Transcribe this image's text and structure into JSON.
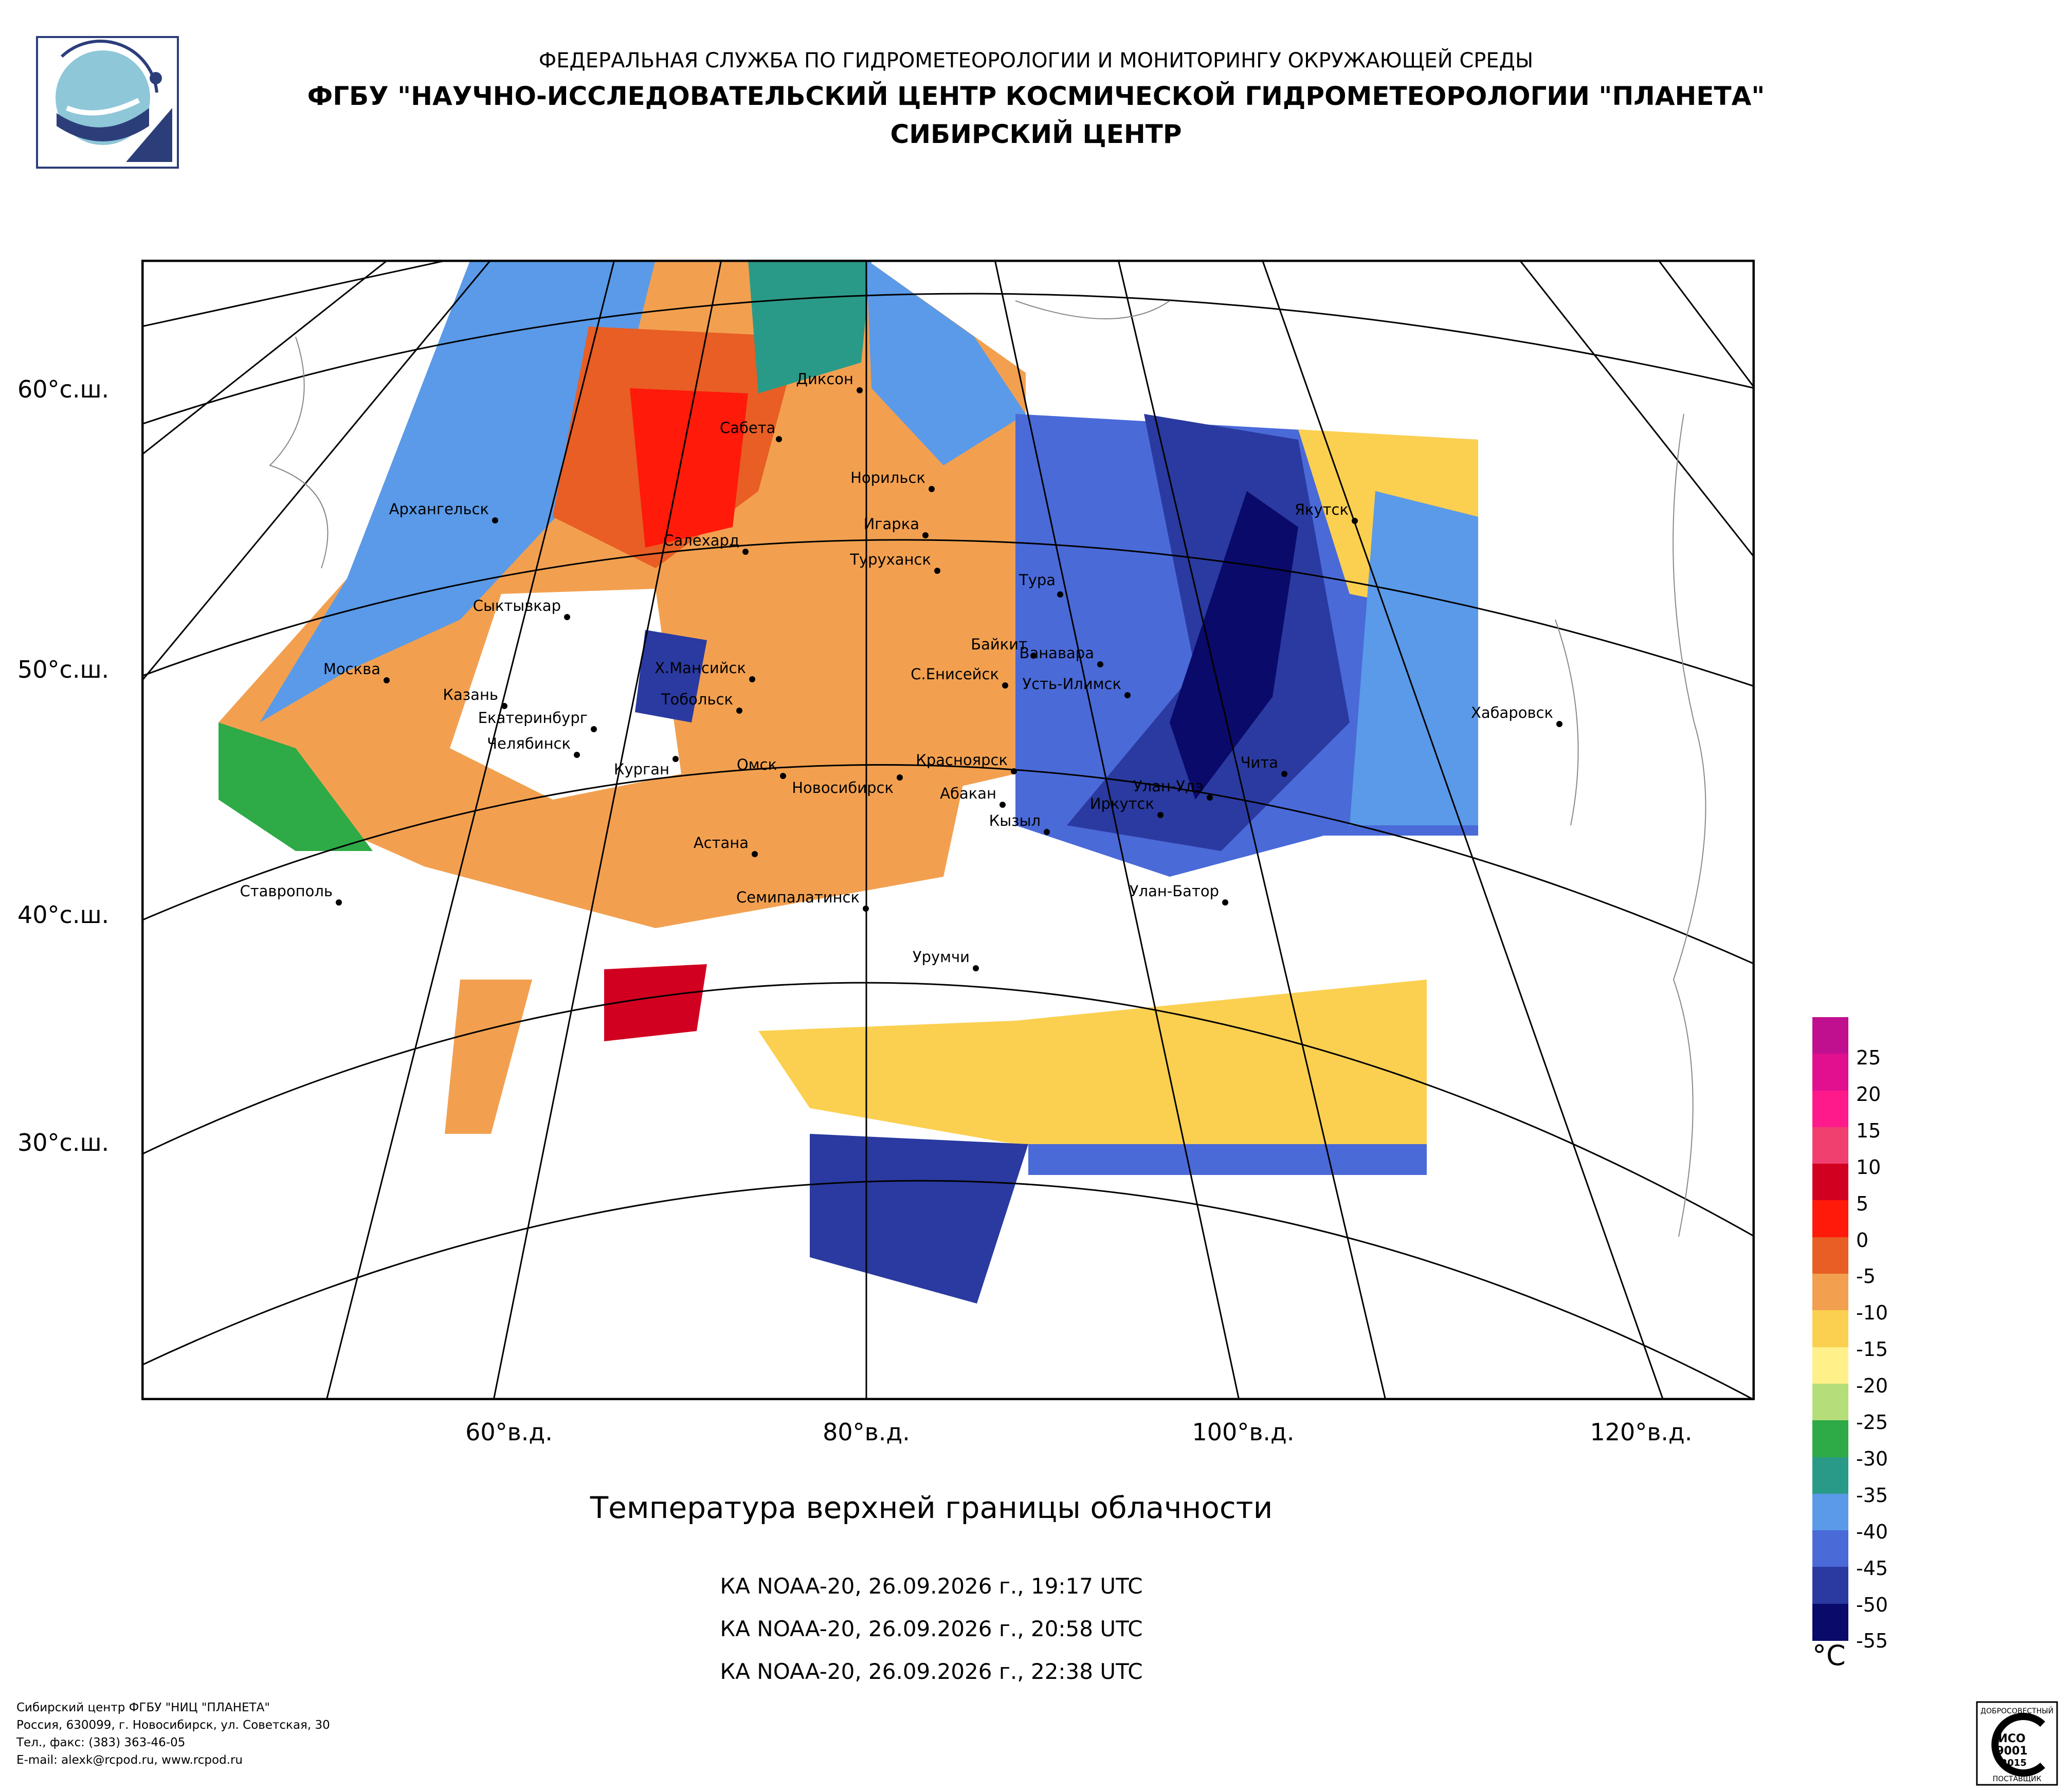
{
  "header": {
    "line1": "ФЕДЕРАЛЬНАЯ СЛУЖБА ПО ГИДРОМЕТЕОРОЛОГИИ И МОНИТОРИНГУ ОКРУЖАЮЩЕЙ СРЕДЫ",
    "line2": "ФГБУ \"НАУЧНО-ИССЛЕДОВАТЕЛЬСКИЙ ЦЕНТР КОСМИЧЕСКОЙ ГИДРОМЕТЕОРОЛОГИИ \"ПЛАНЕТА\"",
    "line3": "СИБИРСКИЙ ЦЕНТР"
  },
  "map": {
    "lat_labels": [
      "60°с.ш.",
      "50°с.ш.",
      "40°с.ш.",
      "30°с.ш."
    ],
    "lon_labels": [
      "60°в.д.",
      "80°в.д.",
      "100°в.д.",
      "120°в.д."
    ],
    "cities": [
      "Диксон",
      "Сабета",
      "Норильск",
      "Архангельск",
      "Игарка",
      "Салехард",
      "Туруханск",
      "Тура",
      "Якутск",
      "Сыктывкар",
      "Байкит",
      "Ванавара",
      "Москва",
      "Х.Мансийск",
      "С.Енисейск",
      "Усть-Илимск",
      "Казань",
      "Тобольск",
      "Хабаровск",
      "Екатеринбург",
      "Челябинск",
      "Курган",
      "Красноярск",
      "Чита",
      "Омск",
      "Новосибирск",
      "Улан-Удэ",
      "Абакан",
      "Иркутск",
      "Кызыл",
      "Астана",
      "Ставрополь",
      "Семипалатинск",
      "Улан-Батор",
      "Урумчи"
    ]
  },
  "title": {
    "subject": "Температура верхней границы облачности",
    "passes": [
      "КА NOAA-20, 26.09.2026 г., 19:17 UTC",
      "КА NOAA-20, 26.09.2026 г., 20:58 UTC",
      "КА NOAA-20, 26.09.2026 г., 22:38 UTC"
    ]
  },
  "legend": {
    "unit": "°C",
    "ticks": [
      "25",
      "20",
      "15",
      "10",
      "5",
      "0",
      "-5",
      "-10",
      "-15",
      "-20",
      "-25",
      "-30",
      "-35",
      "-40",
      "-45",
      "-50",
      "-55"
    ],
    "colors": [
      "#c0108f",
      "#e0108f",
      "#ff1a8c",
      "#f04070",
      "#d10020",
      "#ff1a0a",
      "#e85e25",
      "#f2a050",
      "#fbd050",
      "#fff08a",
      "#b5dd7a",
      "#2eaa46",
      "#2a9a88",
      "#5a9ae8",
      "#4a6ad8",
      "#2a3aa0",
      "#0a0a6a"
    ]
  },
  "footer": {
    "line1": "Сибирский центр ФГБУ \"НИЦ \"ПЛАНЕТА\"",
    "line2": "Россия, 630099, г. Новосибирск, ул. Советская, 30",
    "line3": "Тел., факс: (383) 363-46-05",
    "line4": "E-mail: alexk@rcpod.ru, www.rcpod.ru"
  },
  "certificate": {
    "line1": "ДОБРОСОВЕСТНЫЙ",
    "line2": "ИСО",
    "line3": "9001",
    "line4": "-2015",
    "line5": "ПОСТАВЩИК"
  },
  "colors": {
    "logo_blue": "#2c3e7a",
    "logo_cyan": "#8ec7d8",
    "frame": "#000000"
  }
}
